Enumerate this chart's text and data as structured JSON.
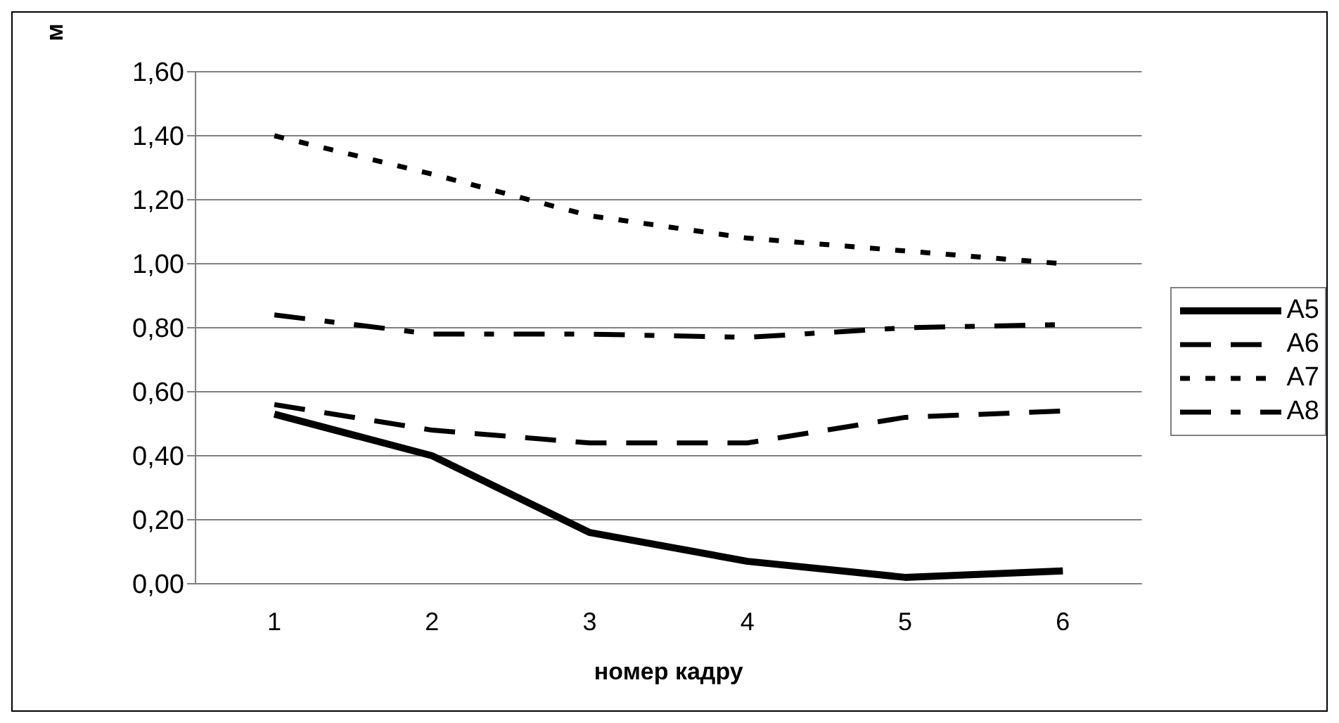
{
  "chart_data": {
    "type": "line",
    "ylabel": "м",
    "xlabel": "номер кадру",
    "categories": [
      "1",
      "2",
      "3",
      "4",
      "5",
      "6"
    ],
    "series": [
      {
        "name": "A5",
        "color": "#000000",
        "line_style": "solid",
        "values": [
          0.53,
          0.4,
          0.16,
          0.07,
          0.02,
          0.04
        ]
      },
      {
        "name": "A6",
        "color": "#000000",
        "line_style": "dashed",
        "values": [
          0.56,
          0.48,
          0.44,
          0.44,
          0.52,
          0.54
        ]
      },
      {
        "name": "A7",
        "color": "#000000",
        "line_style": "dotted",
        "values": [
          1.4,
          1.28,
          1.15,
          1.08,
          1.04,
          1.0
        ]
      },
      {
        "name": "A8",
        "color": "#000000",
        "line_style": "dashdot",
        "values": [
          0.84,
          0.78,
          0.78,
          0.77,
          0.8,
          0.81
        ]
      }
    ],
    "ylim": [
      0,
      1.6
    ],
    "yticks": [
      {
        "value": 0,
        "label": "0,00"
      },
      {
        "value": 0.2,
        "label": "0,20"
      },
      {
        "value": 0.4,
        "label": "0,40"
      },
      {
        "value": 0.6,
        "label": "0,60"
      },
      {
        "value": 0.8,
        "label": "0,80"
      },
      {
        "value": 1,
        "label": "1,00"
      },
      {
        "value": 1.2,
        "label": "1,20"
      },
      {
        "value": 1.4,
        "label": "1,40"
      },
      {
        "value": 1.6,
        "label": "1,60"
      }
    ],
    "grid": "y",
    "legend": "right",
    "marker": "none"
  }
}
